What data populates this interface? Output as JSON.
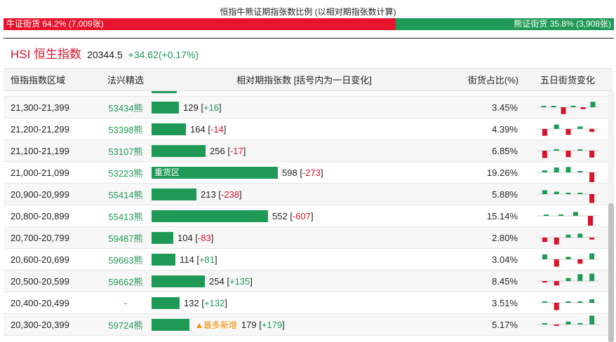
{
  "ratio": {
    "title": "恒指牛熊证期指张数比例 (以相对期指张数计算)",
    "bull_label": "牛证街货 64.2% (7,009张)",
    "bear_label": "熊证街货 35.8% (3,908张)",
    "bull_share": 0.642,
    "bull_color": "#e8142d",
    "bear_color": "#1f9a56"
  },
  "index": {
    "name": "HSI 恒生指数",
    "value": "20344.5",
    "change": "+34.62(+0.17%)"
  },
  "table": {
    "headers": {
      "range": "恒指指数区域",
      "product": "法兴精选",
      "bar": "相对期指张数 [括号内为一日变化]",
      "share": "街货占比(%)",
      "spark": "五日街货变化"
    },
    "max_count": 598,
    "rows": [
      {
        "range": "21,300-21,399",
        "product": "53434熊",
        "count": 129,
        "count_text": "129",
        "change_text": "+16",
        "change_sign": "pos",
        "label": "",
        "share": "3.45%",
        "spark": [
          0.1,
          0.05,
          -0.7,
          0.15,
          -0.2,
          0.55
        ]
      },
      {
        "range": "21,200-21,299",
        "product": "53398熊",
        "count": 164,
        "count_text": "164",
        "change_text": "-14",
        "change_sign": "neg",
        "label": "",
        "share": "4.39%",
        "spark": [
          -0.7,
          0.45,
          -0.6,
          0.25,
          -0.3
        ]
      },
      {
        "range": "21,100-21,199",
        "product": "53107熊",
        "count": 256,
        "count_text": "256",
        "change_text": "-17",
        "change_sign": "neg",
        "label": "",
        "share": "6.85%",
        "spark": [
          -0.75,
          0.15,
          -0.65,
          0.1,
          -0.7
        ]
      },
      {
        "range": "21,000-21,099",
        "product": "53223熊",
        "count": 598,
        "count_text": "598",
        "change_text": "-273",
        "change_sign": "neg",
        "label": "重货区",
        "share": "19.26%",
        "spark": [
          0.2,
          0.5,
          0.55,
          0.05,
          -1.0
        ]
      },
      {
        "range": "20,900-20,999",
        "product": "55414熊",
        "count": 213,
        "count_text": "213",
        "change_text": "-238",
        "change_sign": "neg",
        "label": "",
        "share": "5.88%",
        "spark": [
          0.4,
          0.25,
          0.02,
          0.02,
          -0.9
        ]
      },
      {
        "range": "20,800-20,899",
        "product": "55413熊",
        "count": 552,
        "count_text": "552",
        "change_text": "-607",
        "change_sign": "neg",
        "label": "",
        "share": "15.14%",
        "spark": [
          0.1,
          0.1,
          0.4,
          -1.0
        ]
      },
      {
        "range": "20,700-20,799",
        "product": "59487熊",
        "count": 104,
        "count_text": "104",
        "change_text": "-83",
        "change_sign": "neg",
        "label": "",
        "share": "2.80%",
        "spark": [
          -0.45,
          -0.7,
          0.3,
          0.4,
          -0.2
        ]
      },
      {
        "range": "20,600-20,699",
        "product": "59663熊",
        "count": 114,
        "count_text": "114",
        "change_text": "+81",
        "change_sign": "pos",
        "label": "",
        "share": "3.04%",
        "spark": [
          0.5,
          -0.75,
          0.25,
          -0.45,
          0.6
        ]
      },
      {
        "range": "20,500-20,599",
        "product": "59662熊",
        "count": 254,
        "count_text": "254",
        "change_text": "+135",
        "change_sign": "pos",
        "label": "",
        "share": "8.45%",
        "spark": [
          -0.15,
          -0.45,
          0.3,
          0.7,
          0.75
        ]
      },
      {
        "range": "20,400-20,499",
        "product": "-",
        "count": 132,
        "count_text": "132",
        "change_text": "+132",
        "change_sign": "pos",
        "label": "",
        "share": "3.51%",
        "spark": [
          0.05,
          -0.75,
          0.0,
          0.0,
          0.35
        ]
      },
      {
        "range": "20,300-20,399",
        "product": "59724熊",
        "count": 179,
        "count_text": "179",
        "change_text": "+179",
        "change_sign": "pos",
        "label": "",
        "tag": "▲最多新增",
        "share": "5.17%",
        "spark": [
          0.05,
          -0.05,
          0.3,
          0.0,
          0.9
        ]
      }
    ]
  }
}
